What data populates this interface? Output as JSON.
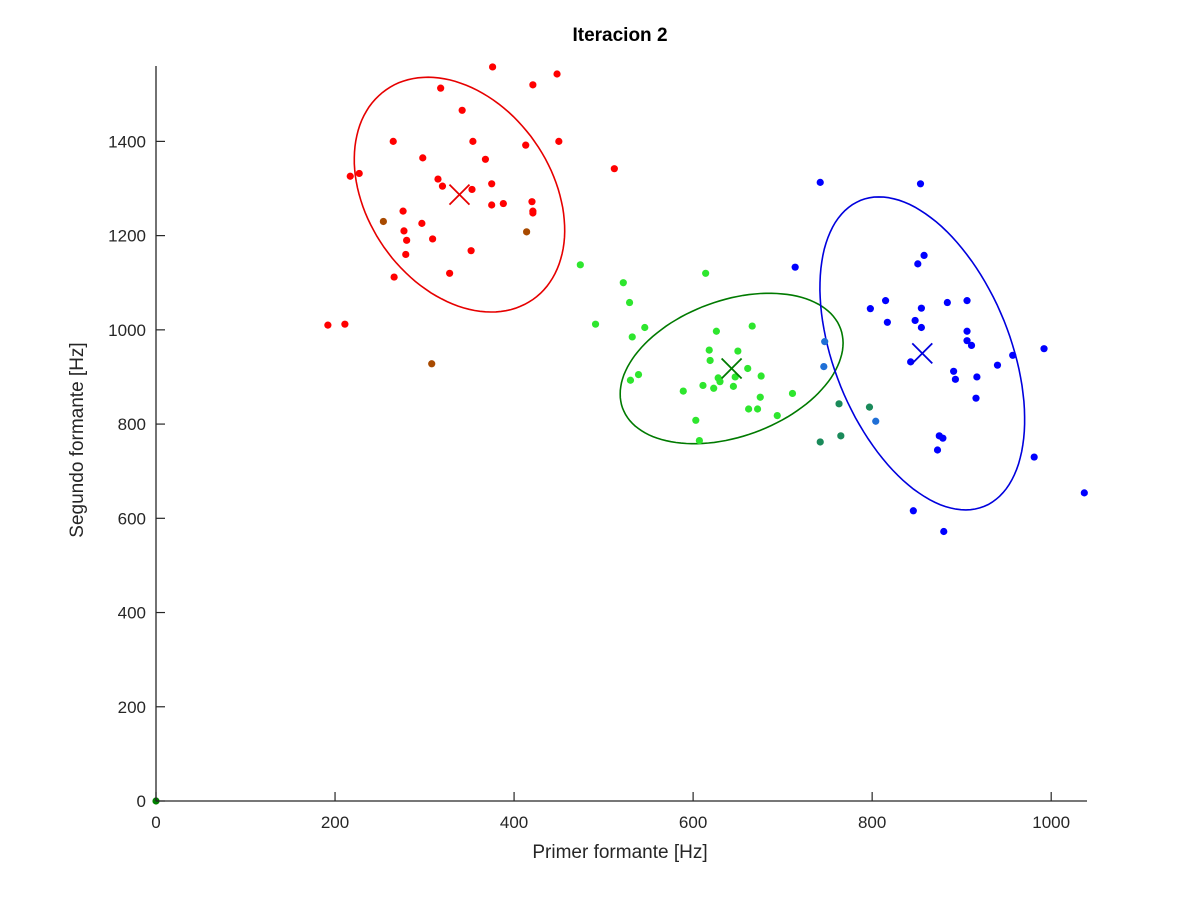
{
  "chart_data": {
    "type": "scatter",
    "title": "Iteracion 2",
    "xlabel": "Primer formante [Hz]",
    "ylabel": "Segundo formante [Hz]",
    "xlim": [
      0,
      1040
    ],
    "ylim": [
      0,
      1560
    ],
    "xticks": [
      0,
      200,
      400,
      600,
      800,
      1000
    ],
    "yticks": [
      0,
      200,
      400,
      600,
      800,
      1000,
      1200,
      1400
    ],
    "grid": false,
    "legend": "none",
    "series": [
      {
        "color": "#ff0000",
        "points": [
          [
            192,
            1010
          ],
          [
            211,
            1012
          ],
          [
            217,
            1326
          ],
          [
            227,
            1332
          ],
          [
            265,
            1400
          ],
          [
            266,
            1112
          ],
          [
            276,
            1252
          ],
          [
            277,
            1210
          ],
          [
            279,
            1160
          ],
          [
            280,
            1190
          ],
          [
            297,
            1226
          ],
          [
            298,
            1365
          ],
          [
            309,
            1193
          ],
          [
            315,
            1320
          ],
          [
            318,
            1513
          ],
          [
            320,
            1305
          ],
          [
            328,
            1120
          ],
          [
            342,
            1466
          ],
          [
            352,
            1168
          ],
          [
            353,
            1298
          ],
          [
            354,
            1400
          ],
          [
            368,
            1362
          ],
          [
            375,
            1265
          ],
          [
            375,
            1310
          ],
          [
            376,
            1558
          ],
          [
            388,
            1268
          ],
          [
            413,
            1392
          ],
          [
            421,
            1520
          ],
          [
            420,
            1272
          ],
          [
            421,
            1252
          ],
          [
            421,
            1248
          ],
          [
            448,
            1543
          ],
          [
            450,
            1400
          ],
          [
            512,
            1342
          ]
        ]
      },
      {
        "color": "#a84a00",
        "points": [
          [
            254,
            1230
          ],
          [
            308,
            928
          ],
          [
            414,
            1208
          ]
        ]
      },
      {
        "color": "#2ee62e",
        "points": [
          [
            474,
            1138
          ],
          [
            491,
            1012
          ],
          [
            522,
            1100
          ],
          [
            529,
            1058
          ],
          [
            530,
            893
          ],
          [
            532,
            985
          ],
          [
            539,
            905
          ],
          [
            546,
            1005
          ],
          [
            589,
            870
          ],
          [
            603,
            808
          ],
          [
            607,
            765
          ],
          [
            611,
            882
          ],
          [
            614,
            1120
          ],
          [
            618,
            957
          ],
          [
            619,
            935
          ],
          [
            623,
            876
          ],
          [
            626,
            997
          ],
          [
            628,
            898
          ],
          [
            630,
            890
          ],
          [
            645,
            880
          ],
          [
            647,
            900
          ],
          [
            650,
            955
          ],
          [
            661,
            918
          ],
          [
            662,
            832
          ],
          [
            666,
            1008
          ],
          [
            672,
            832
          ],
          [
            675,
            857
          ],
          [
            676,
            902
          ],
          [
            694,
            818
          ],
          [
            711,
            865
          ]
        ]
      },
      {
        "color": "#1a8a5a",
        "points": [
          [
            742,
            762
          ],
          [
            763,
            843
          ],
          [
            765,
            775
          ],
          [
            797,
            836
          ]
        ]
      },
      {
        "color": "#1f6fd6",
        "points": [
          [
            746,
            922
          ],
          [
            747,
            975
          ],
          [
            804,
            806
          ]
        ]
      },
      {
        "color": "#0000ff",
        "points": [
          [
            714,
            1133
          ],
          [
            742,
            1313
          ],
          [
            798,
            1045
          ],
          [
            815,
            1062
          ],
          [
            817,
            1016
          ],
          [
            851,
            1140
          ],
          [
            854,
            1310
          ],
          [
            858,
            1158
          ],
          [
            855,
            1046
          ],
          [
            843,
            932
          ],
          [
            848,
            1020
          ],
          [
            855,
            1005
          ],
          [
            875,
            775
          ],
          [
            879,
            770
          ],
          [
            873,
            745
          ],
          [
            884,
            1058
          ],
          [
            891,
            912
          ],
          [
            893,
            895
          ],
          [
            906,
            1062
          ],
          [
            906,
            997
          ],
          [
            906,
            977
          ],
          [
            911,
            967
          ],
          [
            916,
            855
          ],
          [
            917,
            900
          ],
          [
            940,
            925
          ],
          [
            957,
            946
          ],
          [
            981,
            730
          ],
          [
            992,
            960
          ],
          [
            1037,
            654
          ],
          [
            846,
            616
          ],
          [
            880,
            572
          ]
        ]
      },
      {
        "color": "#008000",
        "points": [
          [
            0,
            0
          ]
        ]
      }
    ],
    "centroids": [
      {
        "color": "#e60000",
        "x": 339,
        "y": 1287
      },
      {
        "color": "#007a00",
        "x": 643,
        "y": 918
      },
      {
        "color": "#0000dd",
        "x": 856,
        "y": 950
      }
    ],
    "ellipses": [
      {
        "color": "#e60000",
        "cx": 339,
        "cy": 1287,
        "rx": 92,
        "ry": 128,
        "angle": -35
      },
      {
        "color": "#007a00",
        "cx": 643,
        "cy": 918,
        "rx": 116,
        "ry": 68,
        "angle": -20
      },
      {
        "color": "#0000dd",
        "cx": 856,
        "cy": 950,
        "rx": 88,
        "ry": 165,
        "angle": -22
      }
    ]
  }
}
